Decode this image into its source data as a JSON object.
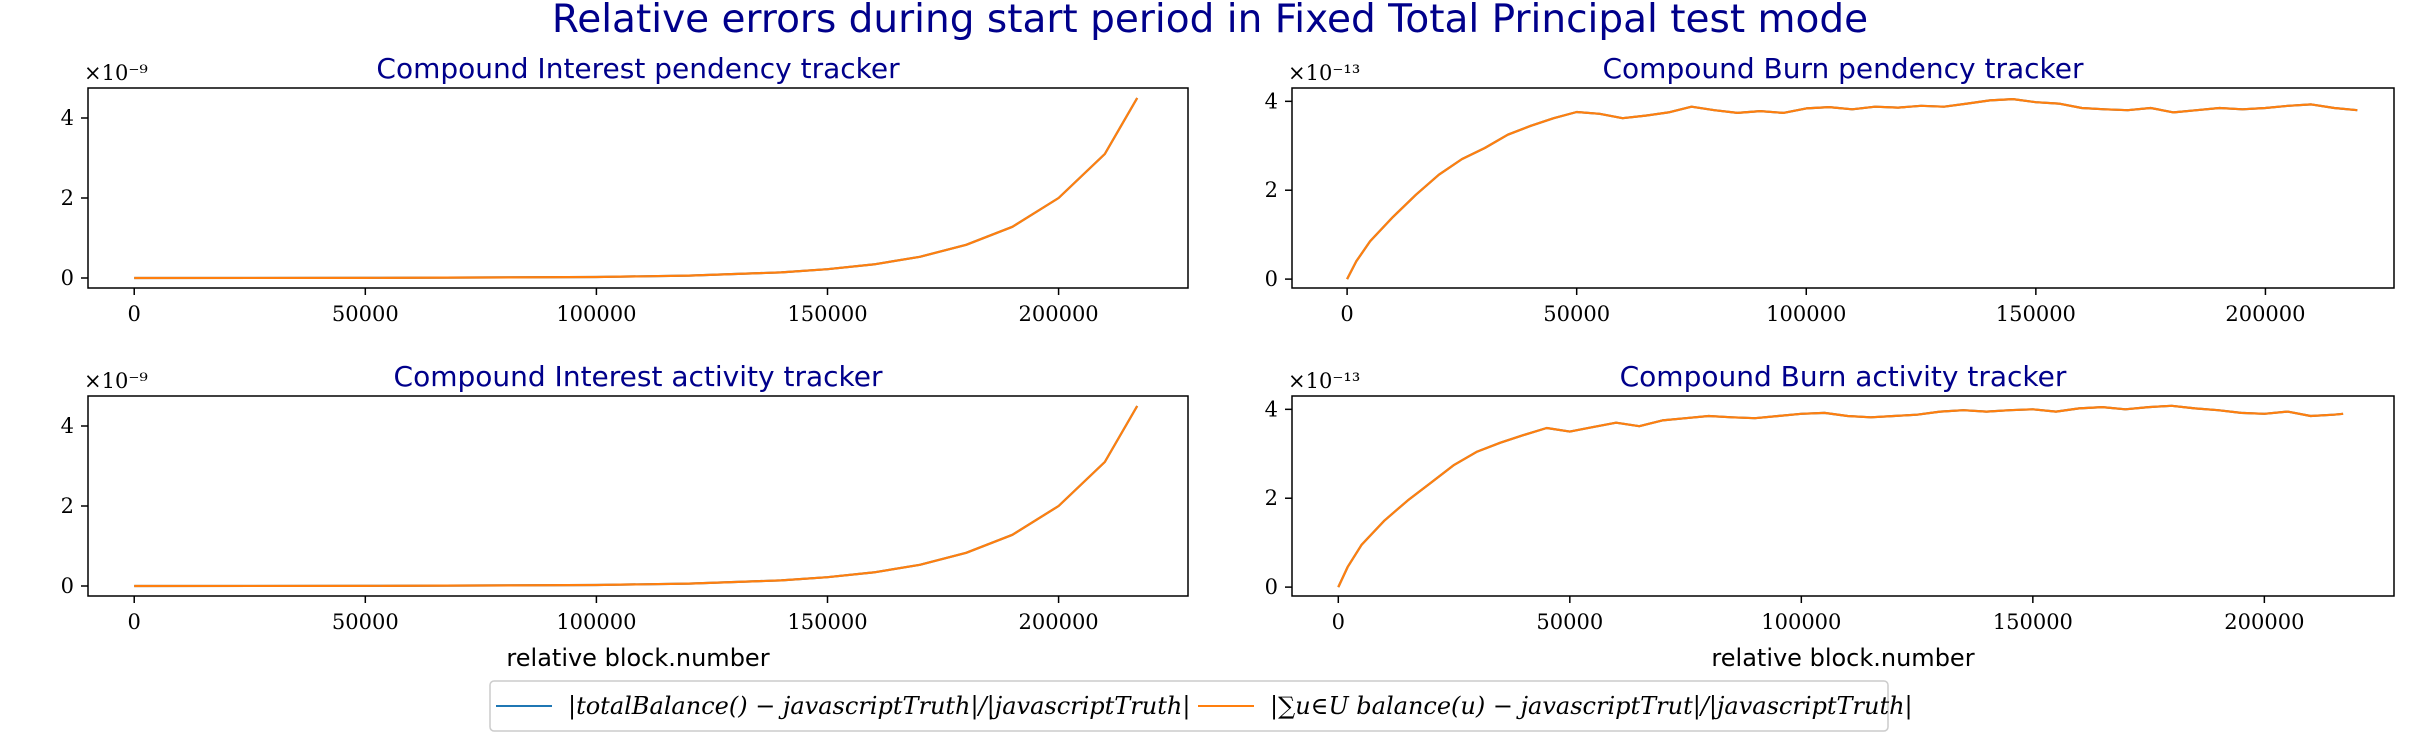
{
  "title": "Relative errors during start period in Fixed Total Principal test mode",
  "legend": {
    "placement": "bottom-center",
    "entries": [
      {
        "label": "|totalBalance() − javascriptTruth|/|javascriptTruth|",
        "color": "#1f77b4"
      },
      {
        "label": "|∑u∈U balance(u) − javascriptTrut|/|javascriptTruth|",
        "color": "#ff7f0e"
      }
    ]
  },
  "chart_data": [
    {
      "type": "line",
      "title": "Compound Interest pendency tracker",
      "xlabel": "",
      "ylabel": "",
      "y_multiplier": "×10⁻⁹",
      "xlim": [
        -10000,
        228000
      ],
      "ylim": [
        -0.25,
        4.75
      ],
      "xticks": [
        "0",
        "50000",
        "100000",
        "150000",
        "200000"
      ],
      "yticks": [
        "0",
        "2",
        "4"
      ],
      "grid": false,
      "series": [
        {
          "color": "#1f77b4",
          "x": [
            0,
            50000,
            100000,
            120000,
            140000,
            150000,
            160000,
            170000,
            180000,
            190000,
            200000,
            210000,
            217000
          ],
          "y": [
            0,
            0.003,
            0.025,
            0.06,
            0.14,
            0.22,
            0.34,
            0.53,
            0.83,
            1.28,
            2.0,
            3.1,
            4.5
          ]
        },
        {
          "color": "#ff7f0e",
          "x": [
            0,
            50000,
            100000,
            120000,
            140000,
            150000,
            160000,
            170000,
            180000,
            190000,
            200000,
            210000,
            217000
          ],
          "y": [
            0,
            0.003,
            0.025,
            0.06,
            0.14,
            0.22,
            0.34,
            0.53,
            0.83,
            1.28,
            2.0,
            3.1,
            4.5
          ]
        }
      ]
    },
    {
      "type": "line",
      "title": "Compound Burn pendency tracker",
      "xlabel": "",
      "ylabel": "",
      "y_multiplier": "×10⁻¹³",
      "xlim": [
        -12000,
        228000
      ],
      "ylim": [
        -0.2,
        4.3
      ],
      "xticks": [
        "0",
        "50000",
        "100000",
        "150000",
        "200000"
      ],
      "yticks": [
        "0",
        "2",
        "4"
      ],
      "grid": false,
      "series": [
        {
          "color": "#1f77b4",
          "x": [
            0,
            2000,
            5000,
            10000,
            15000,
            20000,
            25000,
            30000,
            35000,
            40000,
            45000,
            50000,
            55000,
            60000,
            65000,
            70000,
            75000,
            80000,
            85000,
            90000,
            95000,
            100000,
            105000,
            110000,
            115000,
            120000,
            125000,
            130000,
            135000,
            140000,
            145000,
            150000,
            155000,
            160000,
            165000,
            170000,
            175000,
            180000,
            185000,
            190000,
            195000,
            200000,
            205000,
            210000,
            215000,
            220000
          ],
          "y": [
            0,
            0.4,
            0.85,
            1.4,
            1.9,
            2.35,
            2.7,
            2.95,
            3.25,
            3.45,
            3.62,
            3.76,
            3.72,
            3.62,
            3.68,
            3.75,
            3.88,
            3.8,
            3.74,
            3.78,
            3.74,
            3.84,
            3.87,
            3.82,
            3.88,
            3.86,
            3.9,
            3.88,
            3.95,
            4.02,
            4.05,
            3.98,
            3.95,
            3.85,
            3.82,
            3.8,
            3.85,
            3.75,
            3.8,
            3.85,
            3.82,
            3.85,
            3.9,
            3.93,
            3.85,
            3.8
          ]
        },
        {
          "color": "#ff7f0e",
          "x": [
            0,
            2000,
            5000,
            10000,
            15000,
            20000,
            25000,
            30000,
            35000,
            40000,
            45000,
            50000,
            55000,
            60000,
            65000,
            70000,
            75000,
            80000,
            85000,
            90000,
            95000,
            100000,
            105000,
            110000,
            115000,
            120000,
            125000,
            130000,
            135000,
            140000,
            145000,
            150000,
            155000,
            160000,
            165000,
            170000,
            175000,
            180000,
            185000,
            190000,
            195000,
            200000,
            205000,
            210000,
            215000,
            220000
          ],
          "y": [
            0,
            0.4,
            0.85,
            1.4,
            1.9,
            2.35,
            2.7,
            2.95,
            3.25,
            3.45,
            3.62,
            3.76,
            3.72,
            3.62,
            3.68,
            3.75,
            3.88,
            3.8,
            3.74,
            3.78,
            3.74,
            3.84,
            3.87,
            3.82,
            3.88,
            3.86,
            3.9,
            3.88,
            3.95,
            4.02,
            4.05,
            3.98,
            3.95,
            3.85,
            3.82,
            3.8,
            3.85,
            3.75,
            3.8,
            3.85,
            3.82,
            3.85,
            3.9,
            3.93,
            3.85,
            3.8
          ]
        }
      ]
    },
    {
      "type": "line",
      "title": "Compound Interest activity tracker",
      "xlabel": "relative block.number",
      "ylabel": "",
      "y_multiplier": "×10⁻⁹",
      "xlim": [
        -10000,
        228000
      ],
      "ylim": [
        -0.25,
        4.75
      ],
      "xticks": [
        "0",
        "50000",
        "100000",
        "150000",
        "200000"
      ],
      "yticks": [
        "0",
        "2",
        "4"
      ],
      "grid": false,
      "series": [
        {
          "color": "#1f77b4",
          "x": [
            0,
            50000,
            100000,
            120000,
            140000,
            150000,
            160000,
            170000,
            180000,
            190000,
            200000,
            210000,
            217000
          ],
          "y": [
            0,
            0.003,
            0.025,
            0.06,
            0.14,
            0.22,
            0.34,
            0.53,
            0.83,
            1.28,
            2.0,
            3.1,
            4.5
          ]
        },
        {
          "color": "#ff7f0e",
          "x": [
            0,
            50000,
            100000,
            120000,
            140000,
            150000,
            160000,
            170000,
            180000,
            190000,
            200000,
            210000,
            217000
          ],
          "y": [
            0,
            0.003,
            0.025,
            0.06,
            0.14,
            0.22,
            0.34,
            0.53,
            0.83,
            1.28,
            2.0,
            3.1,
            4.5
          ]
        }
      ]
    },
    {
      "type": "line",
      "title": "Compound Burn activity tracker",
      "xlabel": "relative block.number",
      "ylabel": "",
      "y_multiplier": "×10⁻¹³",
      "xlim": [
        -10000,
        228000
      ],
      "ylim": [
        -0.2,
        4.3
      ],
      "xticks": [
        "0",
        "50000",
        "100000",
        "150000",
        "200000"
      ],
      "yticks": [
        "0",
        "2",
        "4"
      ],
      "grid": false,
      "series": [
        {
          "color": "#1f77b4",
          "x": [
            0,
            2000,
            5000,
            10000,
            15000,
            20000,
            25000,
            30000,
            35000,
            40000,
            45000,
            50000,
            55000,
            60000,
            65000,
            70000,
            75000,
            80000,
            85000,
            90000,
            95000,
            100000,
            105000,
            110000,
            115000,
            120000,
            125000,
            130000,
            135000,
            140000,
            145000,
            150000,
            155000,
            160000,
            165000,
            170000,
            175000,
            180000,
            185000,
            190000,
            195000,
            200000,
            205000,
            210000,
            215000,
            217000
          ],
          "y": [
            0,
            0.45,
            0.95,
            1.5,
            1.95,
            2.35,
            2.75,
            3.05,
            3.25,
            3.42,
            3.58,
            3.5,
            3.6,
            3.7,
            3.62,
            3.75,
            3.8,
            3.85,
            3.82,
            3.8,
            3.85,
            3.9,
            3.92,
            3.85,
            3.82,
            3.85,
            3.88,
            3.95,
            3.98,
            3.95,
            3.98,
            4.0,
            3.95,
            4.02,
            4.05,
            4.0,
            4.05,
            4.08,
            4.02,
            3.98,
            3.92,
            3.9,
            3.95,
            3.85,
            3.88,
            3.9
          ]
        },
        {
          "color": "#ff7f0e",
          "x": [
            0,
            2000,
            5000,
            10000,
            15000,
            20000,
            25000,
            30000,
            35000,
            40000,
            45000,
            50000,
            55000,
            60000,
            65000,
            70000,
            75000,
            80000,
            85000,
            90000,
            95000,
            100000,
            105000,
            110000,
            115000,
            120000,
            125000,
            130000,
            135000,
            140000,
            145000,
            150000,
            155000,
            160000,
            165000,
            170000,
            175000,
            180000,
            185000,
            190000,
            195000,
            200000,
            205000,
            210000,
            215000,
            217000
          ],
          "y": [
            0,
            0.45,
            0.95,
            1.5,
            1.95,
            2.35,
            2.75,
            3.05,
            3.25,
            3.42,
            3.58,
            3.5,
            3.6,
            3.7,
            3.62,
            3.75,
            3.8,
            3.85,
            3.82,
            3.8,
            3.85,
            3.9,
            3.92,
            3.85,
            3.82,
            3.85,
            3.88,
            3.95,
            3.98,
            3.95,
            3.98,
            4.0,
            3.95,
            4.02,
            4.05,
            4.0,
            4.05,
            4.08,
            4.02,
            3.98,
            3.92,
            3.9,
            3.95,
            3.85,
            3.88,
            3.9
          ]
        }
      ]
    }
  ]
}
